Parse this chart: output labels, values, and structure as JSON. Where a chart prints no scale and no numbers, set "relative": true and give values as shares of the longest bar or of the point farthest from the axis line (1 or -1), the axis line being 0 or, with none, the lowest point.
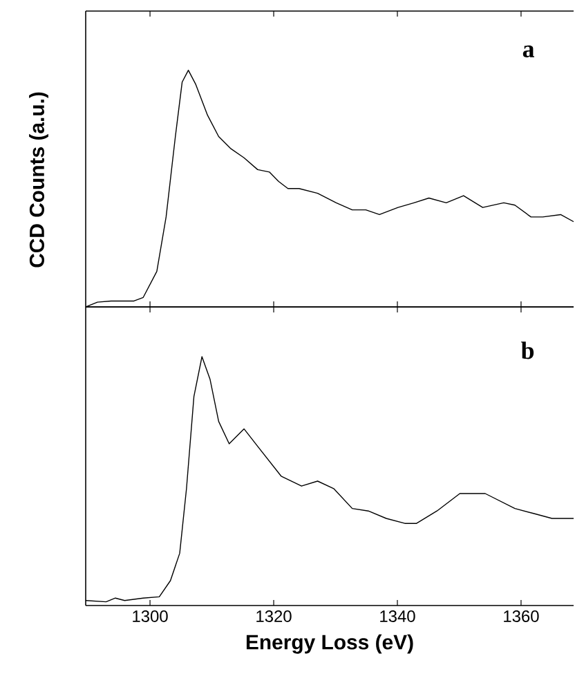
{
  "chart_data": [
    {
      "type": "line",
      "relative": true,
      "ylabel": "CCD Counts (a.u.)",
      "annotations": [
        "a"
      ],
      "xlim": [
        1289.6,
        1368.5
      ],
      "xticks": [
        1300,
        1320,
        1340,
        1360
      ],
      "tick_labels": false,
      "marker": "none",
      "line_style": "solid",
      "x": [
        1289.6,
        1291.5,
        1293.7,
        1297.4,
        1298.9,
        1301.1,
        1302.6,
        1304.1,
        1305.2,
        1306.2,
        1307.4,
        1309.3,
        1311.1,
        1313.0,
        1315.2,
        1317.4,
        1319.3,
        1320.8,
        1322.3,
        1324.1,
        1327.1,
        1330.1,
        1332.7,
        1334.9,
        1337.1,
        1340.1,
        1342.7,
        1345.1,
        1347.9,
        1350.7,
        1353.8,
        1357.2,
        1359.0,
        1361.6,
        1363.5,
        1366.4,
        1368.5
      ],
      "series": [
        {
          "color": "#000000",
          "values": [
            0,
            0.02,
            0.025,
            0.025,
            0.04,
            0.15,
            0.38,
            0.72,
            0.95,
            1,
            0.94,
            0.81,
            0.72,
            0.67,
            0.63,
            0.58,
            0.57,
            0.53,
            0.5,
            0.5,
            0.48,
            0.44,
            0.41,
            0.41,
            0.39,
            0.42,
            0.44,
            0.46,
            0.44,
            0.47,
            0.42,
            0.44,
            0.43,
            0.38,
            0.38,
            0.39,
            0.36
          ]
        }
      ]
    },
    {
      "type": "line",
      "relative": true,
      "xlabel": "Energy Loss (eV)",
      "annotations": [
        "b"
      ],
      "xlim": [
        1289.6,
        1368.5
      ],
      "xticks": [
        1300,
        1320,
        1340,
        1360
      ],
      "tick_labels": "x",
      "marker": "none",
      "line_style": "solid",
      "x": [
        1289.6,
        1292.9,
        1294.4,
        1295.9,
        1298.9,
        1301.5,
        1303.3,
        1304.8,
        1305.9,
        1307.1,
        1308.4,
        1309.7,
        1311.1,
        1312.8,
        1315.2,
        1317.4,
        1321.2,
        1324.5,
        1327.1,
        1329.7,
        1332.7,
        1335.3,
        1338.2,
        1341.2,
        1343.1,
        1346.4,
        1350.1,
        1354.2,
        1359.0,
        1362.0,
        1365.0,
        1368.5
      ],
      "series": [
        {
          "color": "#000000",
          "values": [
            0.02,
            0.015,
            0.03,
            0.02,
            0.03,
            0.035,
            0.1,
            0.21,
            0.47,
            0.84,
            1,
            0.91,
            0.74,
            0.65,
            0.71,
            0.64,
            0.52,
            0.48,
            0.5,
            0.47,
            0.39,
            0.38,
            0.35,
            0.33,
            0.33,
            0.38,
            0.45,
            0.45,
            0.39,
            0.37,
            0.35,
            0.35
          ]
        }
      ]
    }
  ]
}
